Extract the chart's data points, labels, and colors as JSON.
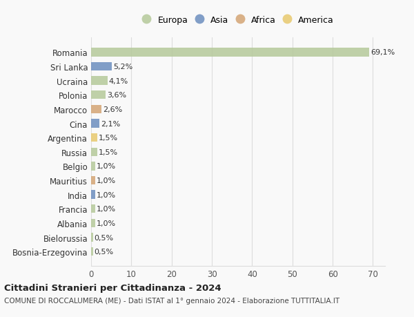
{
  "countries": [
    "Romania",
    "Sri Lanka",
    "Ucraina",
    "Polonia",
    "Marocco",
    "Cina",
    "Argentina",
    "Russia",
    "Belgio",
    "Mauritius",
    "India",
    "Francia",
    "Albania",
    "Bielorussia",
    "Bosnia-Erzegovina"
  ],
  "values": [
    69.1,
    5.2,
    4.1,
    3.6,
    2.6,
    2.1,
    1.5,
    1.5,
    1.0,
    1.0,
    1.0,
    1.0,
    1.0,
    0.5,
    0.5
  ],
  "labels": [
    "69,1%",
    "5,2%",
    "4,1%",
    "3,6%",
    "2,6%",
    "2,1%",
    "1,5%",
    "1,5%",
    "1,0%",
    "1,0%",
    "1,0%",
    "1,0%",
    "1,0%",
    "0,5%",
    "0,5%"
  ],
  "continents": [
    "Europa",
    "Asia",
    "Europa",
    "Europa",
    "Africa",
    "Asia",
    "America",
    "Europa",
    "Europa",
    "Africa",
    "Asia",
    "Europa",
    "Europa",
    "Europa",
    "Europa"
  ],
  "continent_colors": {
    "Europa": "#b5c99a",
    "Asia": "#6c8ebf",
    "Africa": "#d4a574",
    "America": "#e8c96e"
  },
  "legend_order": [
    "Europa",
    "Asia",
    "Africa",
    "America"
  ],
  "title": "Cittadini Stranieri per Cittadinanza - 2024",
  "subtitle": "COMUNE DI ROCCALUMERA (ME) - Dati ISTAT al 1° gennaio 2024 - Elaborazione TUTTITALIA.IT",
  "xlim": [
    0,
    73
  ],
  "xticks": [
    0,
    10,
    20,
    30,
    40,
    50,
    60,
    70
  ],
  "bg_color": "#f9f9f9",
  "grid_color": "#dddddd"
}
